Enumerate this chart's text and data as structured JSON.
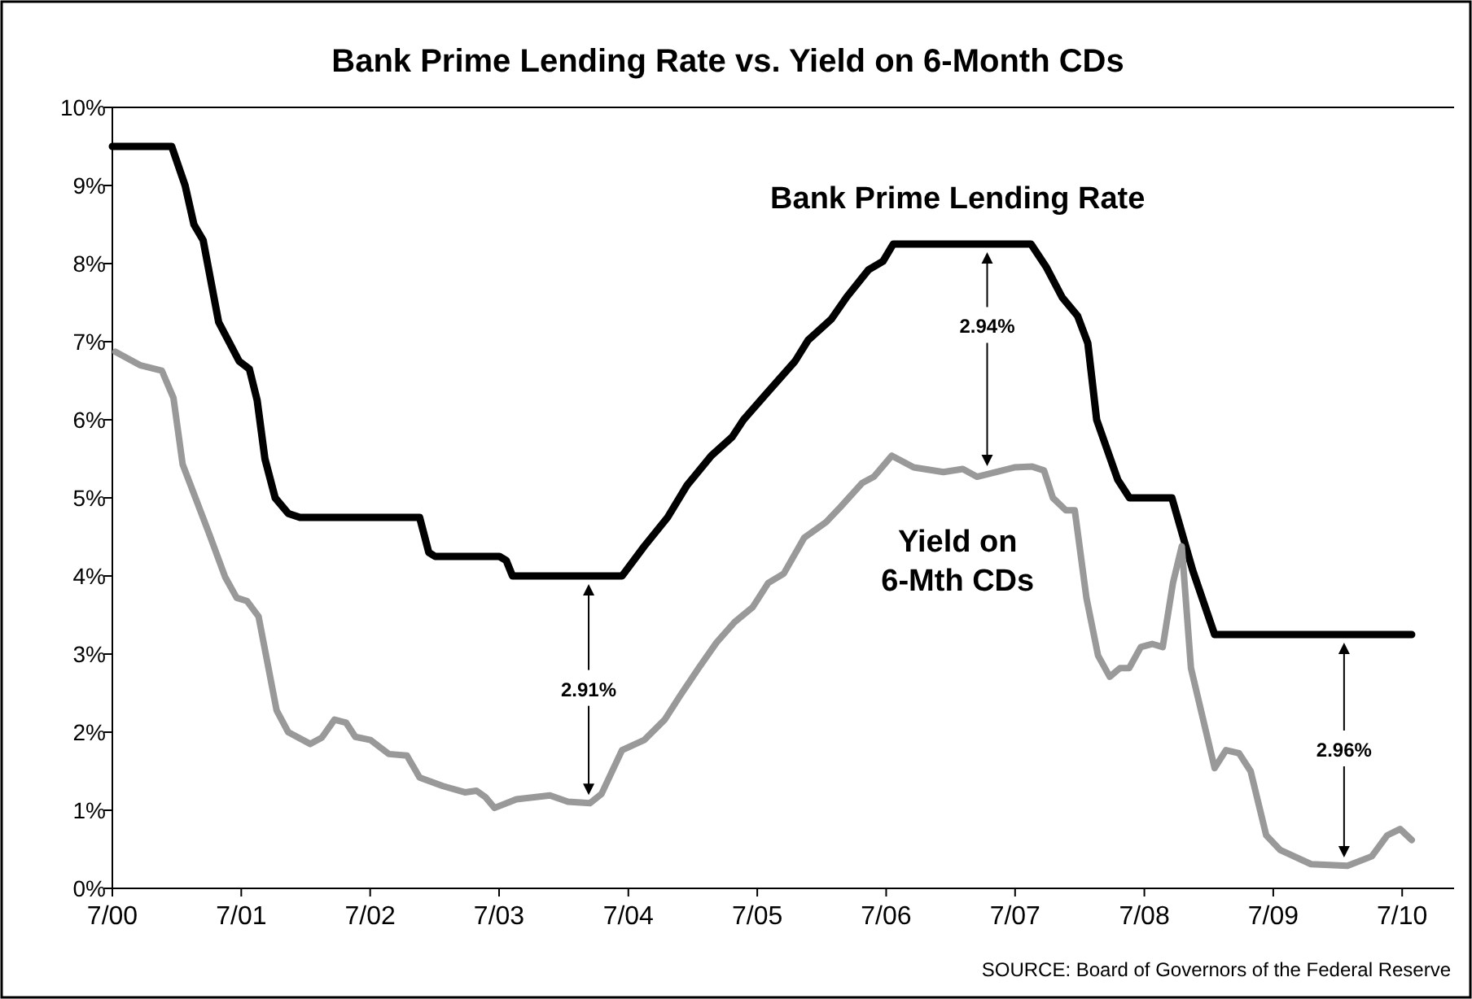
{
  "chart_data": {
    "type": "line",
    "title": "Bank Prime Lending Rate vs. Yield on 6-Month CDs",
    "xlim": [
      "2000-07-01",
      "2010-11-25"
    ],
    "xticks": [
      {
        "value": "2000-07",
        "label": "7/00"
      },
      {
        "value": "2001-07",
        "label": "7/01"
      },
      {
        "value": "2002-07",
        "label": "7/02"
      },
      {
        "value": "2003-07",
        "label": "7/03"
      },
      {
        "value": "2004-07",
        "label": "7/04"
      },
      {
        "value": "2005-07",
        "label": "7/05"
      },
      {
        "value": "2006-07",
        "label": "7/06"
      },
      {
        "value": "2007-07",
        "label": "7/07"
      },
      {
        "value": "2008-07",
        "label": "7/08"
      },
      {
        "value": "2009-07",
        "label": "7/09"
      },
      {
        "value": "2010-07",
        "label": "7/10"
      }
    ],
    "ylim": [
      0,
      10
    ],
    "yticks": [
      {
        "value": 0,
        "label": "0%"
      },
      {
        "value": 1,
        "label": "1%"
      },
      {
        "value": 2,
        "label": "2%"
      },
      {
        "value": 3,
        "label": "3%"
      },
      {
        "value": 4,
        "label": "4%"
      },
      {
        "value": 5,
        "label": "5%"
      },
      {
        "value": 6,
        "label": "6%"
      },
      {
        "value": 7,
        "label": "7%"
      },
      {
        "value": 8,
        "label": "8%"
      },
      {
        "value": 9,
        "label": "9%"
      },
      {
        "value": 10,
        "label": "10%"
      }
    ],
    "grid": false,
    "marker": "none",
    "line_style": "solid",
    "series": [
      {
        "name": "Bank Prime Lending Rate",
        "color": "#000000",
        "x": [
          "2000-07-01",
          "2000-12-16",
          "2001-01-23",
          "2001-02-17",
          "2001-03-15",
          "2001-04-28",
          "2001-05-27",
          "2001-06-25",
          "2001-07-24",
          "2001-08-15",
          "2001-09-06",
          "2001-10-05",
          "2001-11-11",
          "2001-12-14",
          "2002-11-18",
          "2002-12-14",
          "2003-01-01",
          "2003-07-02",
          "2003-07-21",
          "2003-08-08",
          "2004-06-13",
          "2004-08-15",
          "2004-10-20",
          "2004-12-14",
          "2005-02-21",
          "2005-04-21",
          "2005-05-23",
          "2005-07-24",
          "2005-10-16",
          "2005-11-22",
          "2006-01-27",
          "2006-03-11",
          "2006-05-12",
          "2006-06-22",
          "2006-07-21",
          "2007-08-15",
          "2007-09-28",
          "2007-11-11",
          "2007-12-25",
          "2008-01-23",
          "2008-02-17",
          "2008-04-17",
          "2008-05-20",
          "2008-09-17",
          "2008-11-15",
          "2009-01-16",
          "2010-07-28"
        ],
        "values": [
          9.5,
          9.5,
          9.0,
          8.5,
          8.3,
          7.25,
          7.0,
          6.75,
          6.65,
          6.25,
          5.5,
          5.0,
          4.8,
          4.75,
          4.75,
          4.3,
          4.25,
          4.25,
          4.2,
          4.0,
          4.0,
          4.38,
          4.75,
          5.16,
          5.54,
          5.78,
          6.0,
          6.32,
          6.75,
          7.02,
          7.29,
          7.57,
          7.92,
          8.03,
          8.25,
          8.25,
          7.95,
          7.57,
          7.33,
          6.98,
          6.0,
          5.23,
          5.0,
          5.0,
          4.07,
          3.25,
          3.25
        ]
      },
      {
        "name": "Yield on 6-Mth CDs",
        "color": "#999999",
        "x": [
          "2000-07-10",
          "2000-09-17",
          "2000-11-18",
          "2000-12-21",
          "2001-01-16",
          "2001-04-02",
          "2001-05-16",
          "2001-06-18",
          "2001-07-17",
          "2001-08-19",
          "2001-10-09",
          "2001-11-11",
          "2002-01-12",
          "2002-02-14",
          "2002-03-22",
          "2002-04-24",
          "2002-05-20",
          "2002-07-02",
          "2002-08-23",
          "2002-10-13",
          "2002-11-18",
          "2003-01-23",
          "2003-03-26",
          "2003-04-28",
          "2003-05-23",
          "2003-06-18",
          "2003-08-19",
          "2003-11-22",
          "2004-01-12",
          "2004-03-14",
          "2004-04-16",
          "2004-06-13",
          "2004-08-15",
          "2004-10-12",
          "2004-11-25",
          "2005-01-16",
          "2005-03-08",
          "2005-04-28",
          "2005-06-18",
          "2005-08-01",
          "2005-09-14",
          "2005-11-11",
          "2006-01-12",
          "2006-02-21",
          "2006-04-24",
          "2006-05-27",
          "2006-07-17",
          "2006-09-17",
          "2006-12-10",
          "2007-02-03",
          "2007-03-15",
          "2007-06-29",
          "2007-08-19",
          "2007-09-21",
          "2007-10-16",
          "2007-11-22",
          "2007-12-17",
          "2008-01-19",
          "2008-02-21",
          "2008-03-25",
          "2008-04-23",
          "2008-05-19",
          "2008-06-21",
          "2008-07-23",
          "2008-08-22",
          "2008-09-20",
          "2008-10-15",
          "2008-11-10",
          "2009-01-16",
          "2009-02-17",
          "2009-03-26",
          "2009-04-28",
          "2009-06-11",
          "2009-07-21",
          "2009-10-16",
          "2010-01-27",
          "2010-04-06",
          "2010-05-20",
          "2010-06-25",
          "2010-07-28"
        ],
        "values": [
          6.87,
          6.7,
          6.63,
          6.28,
          5.43,
          4.53,
          3.99,
          3.72,
          3.68,
          3.48,
          2.28,
          2.0,
          1.85,
          1.93,
          2.16,
          2.12,
          1.94,
          1.9,
          1.72,
          1.7,
          1.42,
          1.31,
          1.23,
          1.25,
          1.17,
          1.03,
          1.14,
          1.19,
          1.11,
          1.09,
          1.21,
          1.77,
          1.9,
          2.16,
          2.47,
          2.82,
          3.15,
          3.41,
          3.6,
          3.91,
          4.03,
          4.49,
          4.69,
          4.88,
          5.19,
          5.27,
          5.54,
          5.39,
          5.33,
          5.37,
          5.27,
          5.39,
          5.4,
          5.35,
          5.0,
          4.84,
          4.84,
          3.72,
          2.98,
          2.71,
          2.82,
          2.82,
          3.09,
          3.13,
          3.09,
          3.91,
          4.38,
          2.82,
          1.54,
          1.77,
          1.73,
          1.5,
          0.68,
          0.49,
          0.31,
          0.29,
          0.41,
          0.68,
          0.76,
          0.62
        ]
      }
    ],
    "annotations": [
      "2.91%",
      "2.94%",
      "2.96%",
      "SOURCE: Board of Governors of the Federal Reserve"
    ]
  }
}
